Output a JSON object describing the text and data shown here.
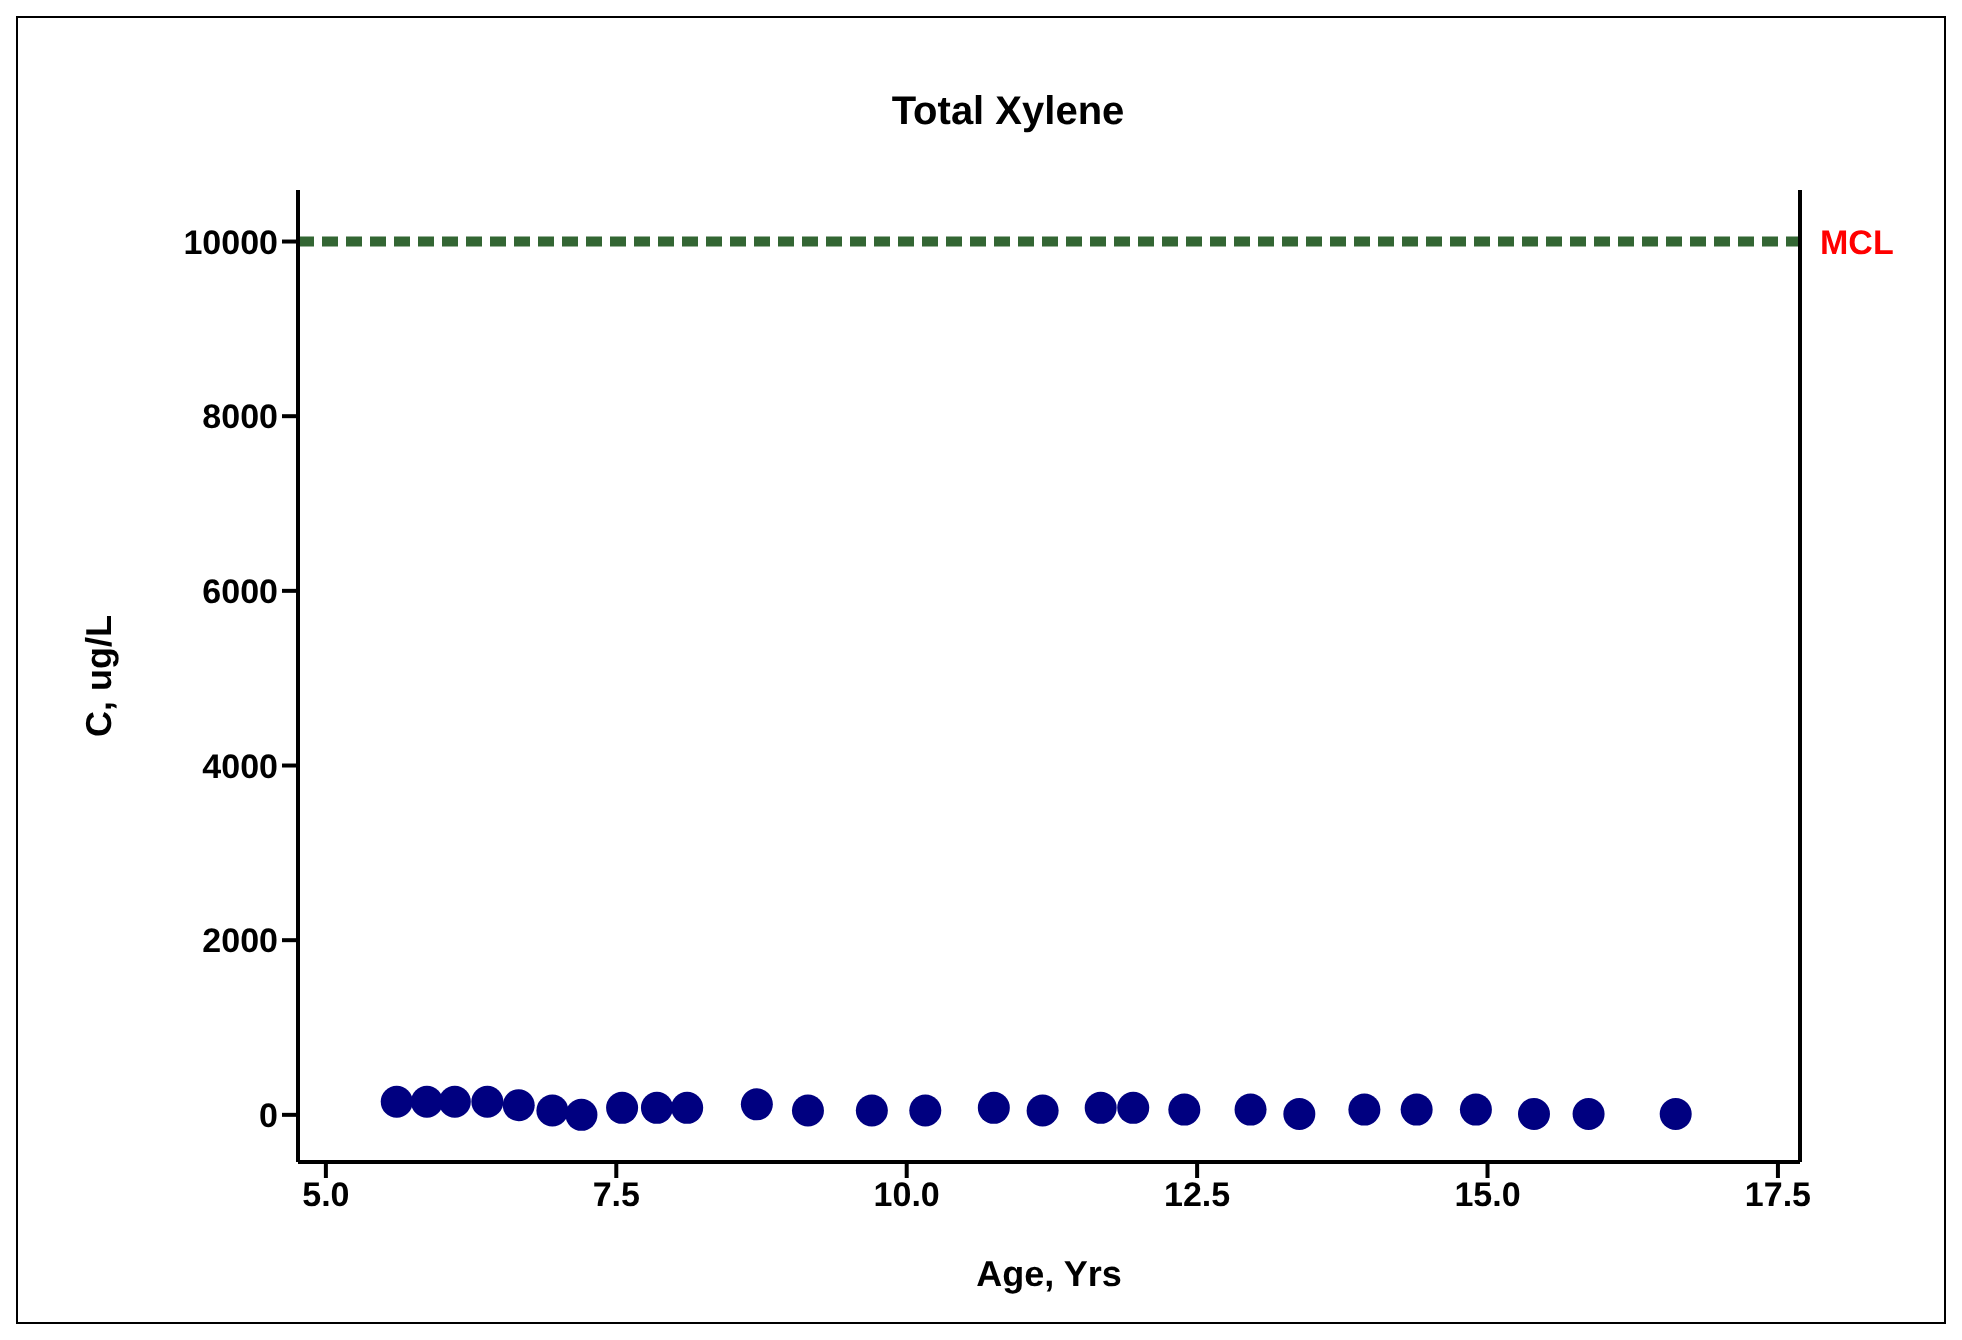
{
  "chart_data": {
    "type": "scatter",
    "title": "Total Xylene",
    "xlabel": "Age, Yrs",
    "ylabel": "C, ug/L",
    "x": [
      5.61,
      5.87,
      6.11,
      6.39,
      6.66,
      6.95,
      7.2,
      7.55,
      7.85,
      8.11,
      8.71,
      9.15,
      9.7,
      10.16,
      10.75,
      11.17,
      11.67,
      11.95,
      12.39,
      12.96,
      13.38,
      13.94,
      14.39,
      14.9,
      15.4,
      15.87,
      16.62
    ],
    "series": [
      {
        "color": "#000080",
        "values": [
          150,
          150,
          150,
          150,
          110,
          50,
          0,
          80,
          80,
          80,
          120,
          50,
          50,
          50,
          80,
          50,
          80,
          80,
          60,
          60,
          10,
          60,
          60,
          60,
          10,
          10,
          10
        ]
      }
    ],
    "marker": "circle",
    "xlim": [
      4.76,
      17.69
    ],
    "xticks": [
      {
        "value": 5,
        "label": "5.0"
      },
      {
        "value": 7.5,
        "label": "7.5"
      },
      {
        "value": 10,
        "label": "10.0"
      },
      {
        "value": 12.5,
        "label": "12.5"
      },
      {
        "value": 15,
        "label": "15.0"
      },
      {
        "value": 17.5,
        "label": "17.5"
      }
    ],
    "ylim": [
      -540,
      10590
    ],
    "yticks": [
      0,
      2000,
      4000,
      6000,
      8000,
      10000
    ],
    "grid": false,
    "legend": false,
    "ref_lines": [
      {
        "axis": "y",
        "value": 10000,
        "label": "MCL",
        "color": "#336633",
        "line_style": "dashed"
      }
    ]
  }
}
